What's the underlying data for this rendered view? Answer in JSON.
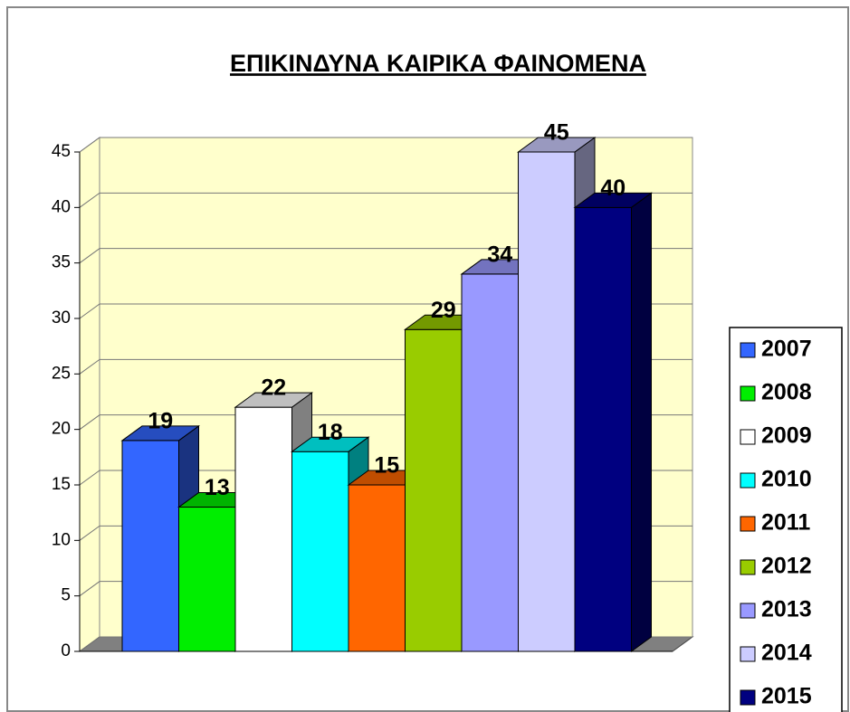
{
  "chart_data": {
    "type": "bar3d",
    "title": "ΕΠΙΚΙΝΔΥΝΑ  ΚΑΙΡΙΚΑ ΦΑΙΝΟΜΕΝΑ",
    "series": [
      {
        "name": "2007",
        "color": "#3366ff",
        "values": [
          19
        ]
      },
      {
        "name": "2008",
        "color": "#00ee00",
        "values": [
          13
        ]
      },
      {
        "name": "2009",
        "color": "#ffffff",
        "values": [
          22
        ]
      },
      {
        "name": "2010",
        "color": "#00ffff",
        "values": [
          18
        ]
      },
      {
        "name": "2011",
        "color": "#ff6600",
        "values": [
          15
        ]
      },
      {
        "name": "2012",
        "color": "#99cc00",
        "values": [
          29
        ]
      },
      {
        "name": "2013",
        "color": "#9999ff",
        "values": [
          34
        ]
      },
      {
        "name": "2014",
        "color": "#ccccff",
        "values": [
          45
        ]
      },
      {
        "name": "2015",
        "color": "#000080",
        "values": [
          40
        ]
      }
    ],
    "ylim": [
      0,
      45
    ],
    "yticks": [
      0,
      5,
      10,
      15,
      20,
      25,
      30,
      35,
      40,
      45
    ],
    "grid": true,
    "legend": "right"
  }
}
